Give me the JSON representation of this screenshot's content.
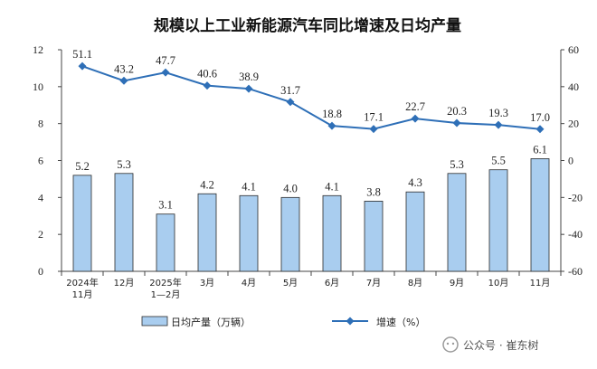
{
  "chart_data": {
    "type": "bar+line",
    "title": "规模以上工业新能源汽车同比增速及日均产量",
    "categories": [
      "2024年\n11月",
      "12月",
      "2025年\n1—2月",
      "3月",
      "4月",
      "5月",
      "6月",
      "7月",
      "8月",
      "9月",
      "10月",
      "11月"
    ],
    "series": [
      {
        "name": "日均产量（万辆）",
        "type": "bar",
        "axis": "left",
        "values": [
          5.2,
          5.3,
          3.1,
          4.2,
          4.1,
          4.0,
          4.1,
          3.8,
          4.3,
          5.3,
          5.5,
          6.1
        ],
        "color": "#a9cdef"
      },
      {
        "name": "增速（%）",
        "type": "line",
        "axis": "right",
        "values": [
          51.1,
          43.2,
          47.7,
          40.6,
          38.9,
          31.7,
          18.8,
          17.1,
          22.7,
          20.3,
          19.3,
          17.0
        ],
        "color": "#2e6fb7"
      }
    ],
    "ylim_left": [
      0,
      12
    ],
    "yticks_left": [
      0,
      2,
      4,
      6,
      8,
      10,
      12
    ],
    "ylim_right": [
      -60,
      60
    ],
    "yticks_right": [
      -60,
      -40,
      -20,
      0,
      20,
      40,
      60
    ],
    "grid": false,
    "legend": "bottom"
  },
  "watermark": {
    "text": "公众号 · 崔东树"
  }
}
